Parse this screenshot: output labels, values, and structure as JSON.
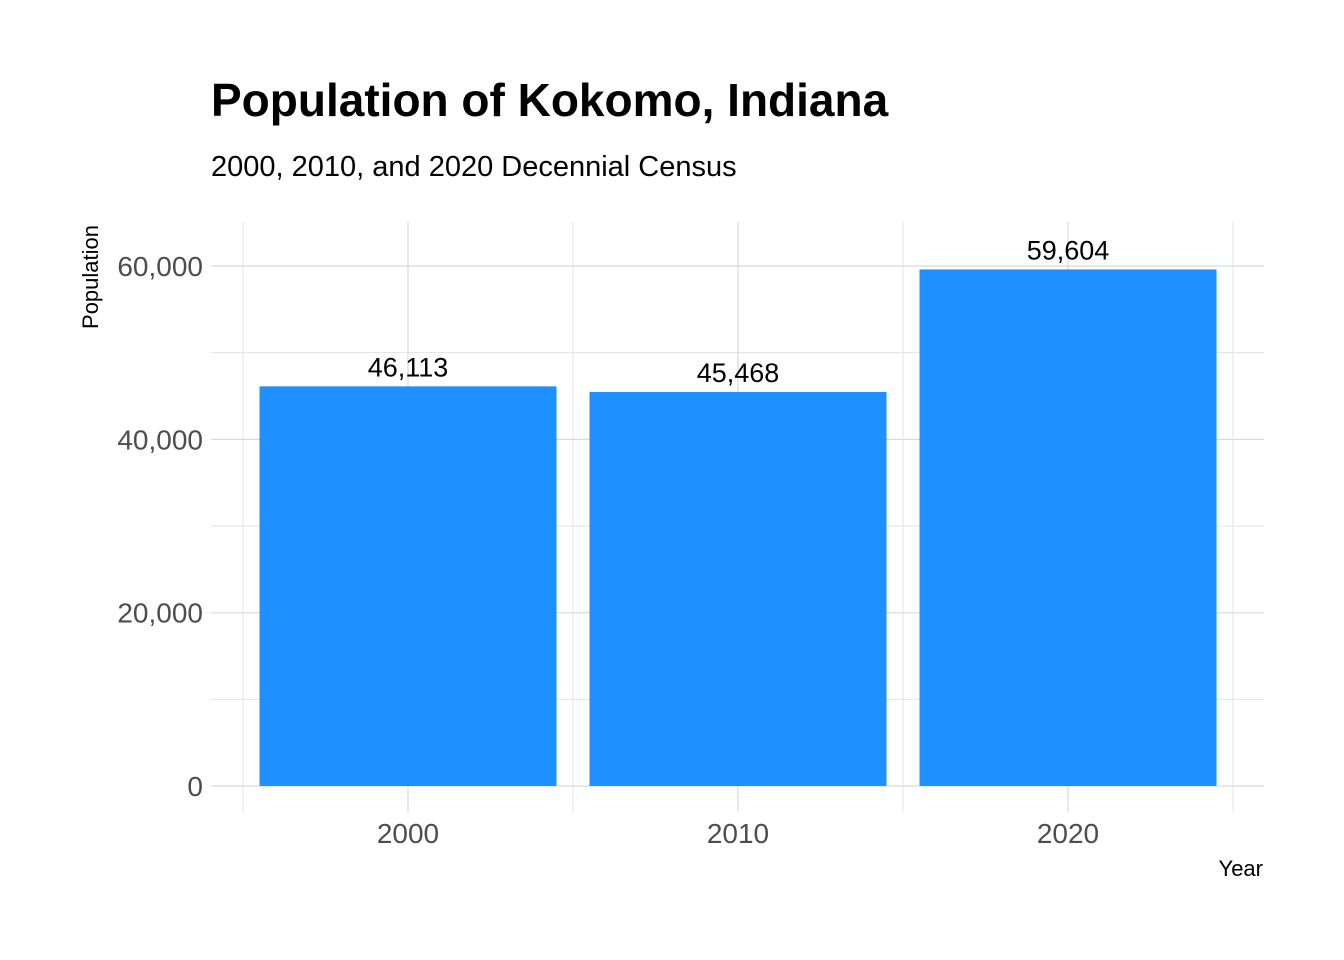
{
  "chart_data": {
    "type": "bar",
    "title": "Population of Kokomo, Indiana",
    "subtitle": "2000, 2010, and 2020 Decennial Census",
    "xlabel": "Year",
    "ylabel": "Population",
    "categories": [
      "2000",
      "2010",
      "2020"
    ],
    "values": [
      46113,
      45468,
      59604
    ],
    "data_labels": [
      "46,113",
      "45,468",
      "59,604"
    ],
    "y_ticks": [
      0,
      20000,
      40000,
      60000
    ],
    "y_tick_labels": [
      "0",
      "20,000",
      "40,000",
      "60,000"
    ],
    "ylim": [
      0,
      65000
    ],
    "grid": true,
    "legend": "none",
    "bar_color": "#1E90FF"
  }
}
